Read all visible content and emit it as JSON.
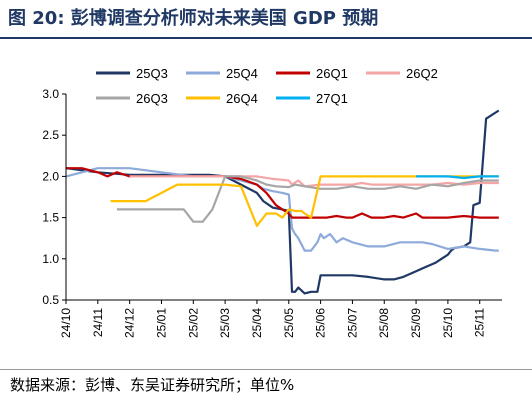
{
  "title": "图 20:  彭博调查分析师对未来美国 GDP 预期",
  "source": "数据来源：彭博、东吴证券研究所；单位%",
  "chart_data": {
    "type": "line",
    "ylim": [
      0.5,
      3.0
    ],
    "yticks": [
      "0.5",
      "1.0",
      "1.5",
      "2.0",
      "2.5",
      "3.0"
    ],
    "ytick_values": [
      0.5,
      1.0,
      1.5,
      2.0,
      2.5,
      3.0
    ],
    "xticks": [
      "24/10",
      "24/11",
      "24/12",
      "25/01",
      "25/02",
      "25/03",
      "25/04",
      "25/05",
      "25/06",
      "25/07",
      "25/08",
      "25/09",
      "25/10",
      "25/11"
    ],
    "grid": false,
    "legend_position": "top",
    "series": [
      {
        "name": "25Q3",
        "color": "#1f3864",
        "x": [
          0,
          1,
          2,
          3,
          4,
          4.5,
          5,
          5.5,
          6,
          6.2,
          6.5,
          6.8,
          7,
          7.1,
          7.2,
          7.3,
          7.5,
          7.7,
          7.9,
          8,
          8.5,
          9,
          9.5,
          10,
          10.3,
          10.6,
          11,
          11.3,
          11.6,
          11.8,
          12,
          12.1,
          12.2,
          12.5,
          12.7,
          12.8,
          13,
          13.2,
          13.4,
          13.6
        ],
        "y": [
          2.1,
          2.05,
          2.02,
          2.02,
          2.02,
          2.02,
          2.0,
          1.9,
          1.8,
          1.7,
          1.62,
          1.6,
          1.58,
          0.6,
          0.6,
          0.65,
          0.58,
          0.6,
          0.6,
          0.8,
          0.8,
          0.8,
          0.78,
          0.75,
          0.75,
          0.78,
          0.85,
          0.9,
          0.95,
          1.0,
          1.05,
          1.1,
          1.13,
          1.15,
          1.2,
          1.65,
          1.68,
          2.7,
          2.75,
          2.8
        ]
      },
      {
        "name": "25Q4",
        "color": "#8eaadb",
        "x": [
          0,
          0.5,
          1,
          1.5,
          2,
          3,
          4,
          4.5,
          5,
          5.5,
          6,
          6.2,
          6.5,
          6.8,
          7,
          7.1,
          7.2,
          7.3,
          7.5,
          7.7,
          7.9,
          8,
          8.1,
          8.3,
          8.5,
          8.7,
          9,
          9.5,
          10,
          10.5,
          11,
          11.2,
          11.5,
          12,
          12.5,
          13,
          13.5,
          13.6
        ],
        "y": [
          2.0,
          2.05,
          2.1,
          2.1,
          2.1,
          2.05,
          2.0,
          2.0,
          2.0,
          1.95,
          1.9,
          1.85,
          1.82,
          1.8,
          1.78,
          1.37,
          1.3,
          1.25,
          1.1,
          1.1,
          1.2,
          1.3,
          1.25,
          1.3,
          1.2,
          1.25,
          1.2,
          1.15,
          1.15,
          1.2,
          1.2,
          1.2,
          1.18,
          1.12,
          1.15,
          1.12,
          1.1,
          1.1
        ]
      },
      {
        "name": "26Q1",
        "color": "#c00000",
        "x": [
          0,
          0.5,
          1,
          1.3,
          1.6,
          2,
          3,
          4,
          5,
          5.5,
          6,
          6.3,
          6.6,
          6.8,
          7,
          7.1,
          7.3,
          7.6,
          7.9,
          8.2,
          8.5,
          8.8,
          9,
          9.3,
          9.6,
          10,
          10.3,
          10.6,
          11,
          11.2,
          11.5,
          12,
          12.5,
          13,
          13.6
        ],
        "y": [
          2.1,
          2.1,
          2.05,
          2.0,
          2.05,
          2.0,
          2.0,
          2.0,
          2.0,
          1.97,
          1.9,
          1.8,
          1.65,
          1.6,
          1.55,
          1.5,
          1.5,
          1.5,
          1.5,
          1.5,
          1.52,
          1.5,
          1.5,
          1.55,
          1.5,
          1.5,
          1.52,
          1.5,
          1.55,
          1.5,
          1.5,
          1.5,
          1.52,
          1.5,
          1.5
        ]
      },
      {
        "name": "26Q2",
        "color": "#f4a6a6",
        "x": [
          2,
          3,
          4,
          5,
          5.5,
          6,
          6.5,
          7,
          7.1,
          7.3,
          7.5,
          8,
          8.5,
          9,
          9.3,
          9.6,
          10,
          10.5,
          11,
          11.5,
          12,
          12.5,
          13,
          13.6
        ],
        "y": [
          2.0,
          2.0,
          2.0,
          2.0,
          2.0,
          2.0,
          1.97,
          1.95,
          1.9,
          1.95,
          1.88,
          1.9,
          1.9,
          1.9,
          1.92,
          1.9,
          1.9,
          1.9,
          1.9,
          1.9,
          1.92,
          1.9,
          1.92,
          1.92
        ]
      },
      {
        "name": "26Q3",
        "color": "#a6a6a6",
        "x": [
          1.6,
          2,
          3,
          3.4,
          3.7,
          4,
          4.3,
          4.6,
          5,
          5.5,
          6,
          6.3,
          6.6,
          7,
          7.2,
          7.5,
          8,
          8.5,
          9,
          9.5,
          10,
          10.5,
          11,
          11.5,
          12,
          12.5,
          13,
          13.6
        ],
        "y": [
          1.6,
          1.6,
          1.6,
          1.6,
          1.6,
          1.45,
          1.45,
          1.6,
          2.0,
          2.0,
          1.95,
          1.9,
          1.88,
          1.87,
          1.9,
          1.88,
          1.85,
          1.85,
          1.88,
          1.85,
          1.85,
          1.88,
          1.85,
          1.9,
          1.88,
          1.92,
          1.95,
          1.95
        ]
      },
      {
        "name": "26Q4",
        "color": "#ffc000",
        "x": [
          1.4,
          2,
          2.5,
          3,
          3.5,
          4,
          4.3,
          4.6,
          5,
          5.5,
          6,
          6.3,
          6.6,
          6.8,
          7,
          7.2,
          7.4,
          7.5,
          7.7,
          8,
          8.2,
          8.5,
          9,
          9.5,
          10,
          10.5,
          11,
          11.5,
          12,
          12.5,
          13,
          13.6
        ],
        "y": [
          1.7,
          1.7,
          1.7,
          1.8,
          1.9,
          1.9,
          1.9,
          1.9,
          1.9,
          1.88,
          1.4,
          1.55,
          1.55,
          1.5,
          1.6,
          1.58,
          1.58,
          1.55,
          1.5,
          2.0,
          2.0,
          2.0,
          2.0,
          2.0,
          2.0,
          2.0,
          2.0,
          2.0,
          2.0,
          2.0,
          2.0,
          2.0
        ]
      },
      {
        "name": "27Q1",
        "color": "#00b0f0",
        "x": [
          11,
          11.5,
          12,
          12.5,
          13,
          13.6
        ],
        "y": [
          2.0,
          2.0,
          2.0,
          1.98,
          2.0,
          2.0
        ]
      }
    ]
  }
}
